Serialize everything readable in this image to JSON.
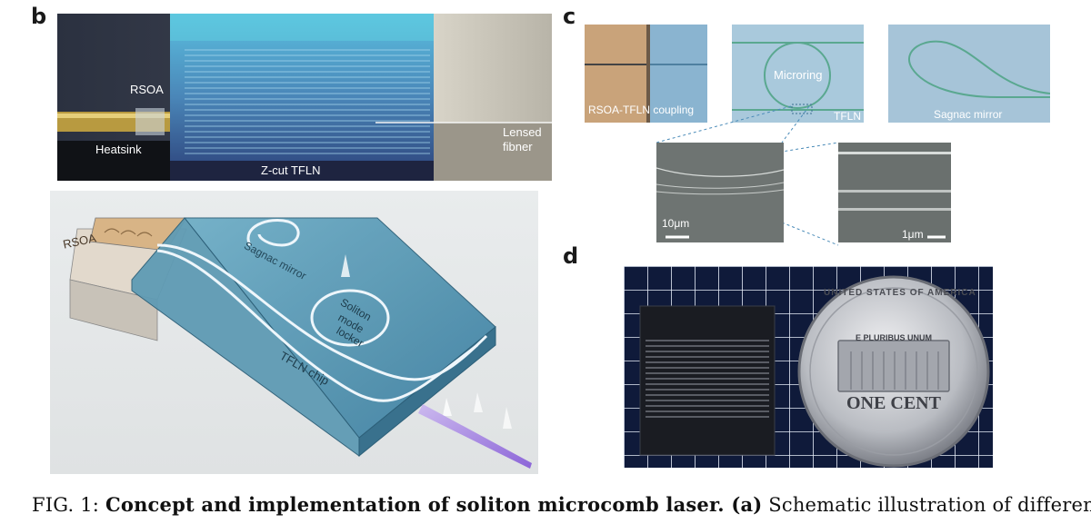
{
  "panels": {
    "b": {
      "letter": "b",
      "labels": {
        "rsoa": "RSOA",
        "heatsink": "Heatsink",
        "chip": "Z-cut TFLN",
        "fiber_line1": "Lensed",
        "fiber_line2": "fibner"
      }
    },
    "a": {
      "labels": {
        "rsoa": "RSOA",
        "sagnac": "Sagnac mirror",
        "soliton_line1": "Soliton",
        "soliton_line2": "mode",
        "soliton_line3": "locker",
        "chip": "TFLN chip"
      }
    },
    "c": {
      "letter": "c",
      "labels": {
        "coupling": "RSOA-TFLN coupling",
        "microring": "Microring",
        "tfln": "TFLN",
        "sagnac": "Sagnac mirror",
        "scale1": "10μm",
        "scale2": "1μm"
      }
    },
    "d": {
      "letter": "d",
      "coin": {
        "top_text": "UNITED STATES OF AMERICA",
        "motto": "E PLURIBUS UNUM",
        "value": "ONE CENT"
      }
    }
  },
  "caption": {
    "prefix": "FIG. 1: ",
    "title": "Concept and implementation of soliton microcomb laser.",
    "sub_label": " (a)",
    "text": " Schematic illustration of different"
  }
}
